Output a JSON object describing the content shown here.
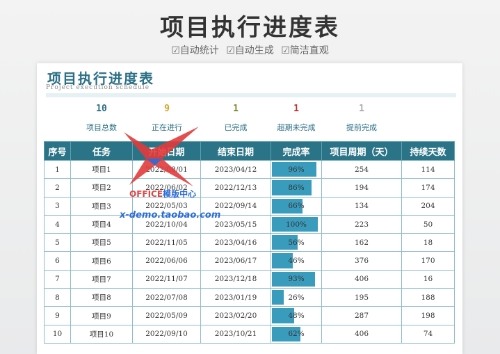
{
  "banner": {
    "title": "项目执行进度表",
    "tags": [
      "☑自动统计",
      "☑自动生成",
      "☑简洁直观"
    ]
  },
  "sheet": {
    "title": "项目执行进度表",
    "subtitle": "Project execution schedule"
  },
  "stats": [
    {
      "value": "10",
      "label": "项目总数",
      "color": "#2b6f86"
    },
    {
      "value": "9",
      "label": "正在进行",
      "color": "#d8a21a"
    },
    {
      "value": "1",
      "label": "已完成",
      "color": "#7a8a2a"
    },
    {
      "value": "1",
      "label": "超期未完成",
      "color": "#c03030"
    },
    {
      "value": "1",
      "label": "提前完成",
      "color": "#aaaaaa"
    }
  ],
  "table": {
    "headers": [
      "序号",
      "任务",
      "开始日期",
      "结束日期",
      "完成率",
      "项目周期（天）",
      "持续天数"
    ],
    "rows": [
      {
        "no": "1",
        "task": "项目1",
        "start": "2022/08/01",
        "end": "2023/04/12",
        "rate": "96%",
        "rate_value": 0.96,
        "cycle": "254",
        "days": "114"
      },
      {
        "no": "2",
        "task": "项目2",
        "start": "2022/06/02",
        "end": "2022/12/13",
        "rate": "86%",
        "rate_value": 0.86,
        "cycle": "194",
        "days": "174"
      },
      {
        "no": "3",
        "task": "项目3",
        "start": "2022/05/03",
        "end": "2022/09/14",
        "rate": "66%",
        "rate_value": 0.66,
        "cycle": "134",
        "days": "204"
      },
      {
        "no": "4",
        "task": "项目4",
        "start": "2022/10/04",
        "end": "2023/05/15",
        "rate": "100%",
        "rate_value": 1.0,
        "cycle": "223",
        "days": "50"
      },
      {
        "no": "5",
        "task": "项目5",
        "start": "2022/11/05",
        "end": "2023/04/16",
        "rate": "56%",
        "rate_value": 0.56,
        "cycle": "162",
        "days": "18"
      },
      {
        "no": "6",
        "task": "项目6",
        "start": "2022/06/06",
        "end": "2023/06/17",
        "rate": "46%",
        "rate_value": 0.46,
        "cycle": "376",
        "days": "170"
      },
      {
        "no": "7",
        "task": "项目7",
        "start": "2022/11/07",
        "end": "2023/12/18",
        "rate": "93%",
        "rate_value": 0.93,
        "cycle": "406",
        "days": "16"
      },
      {
        "no": "8",
        "task": "项目8",
        "start": "2022/07/08",
        "end": "2023/01/19",
        "rate": "26%",
        "rate_value": 0.26,
        "cycle": "195",
        "days": "188"
      },
      {
        "no": "9",
        "task": "项目9",
        "start": "2022/05/09",
        "end": "2023/02/20",
        "rate": "48%",
        "rate_value": 0.48,
        "cycle": "287",
        "days": "198"
      },
      {
        "no": "10",
        "task": "项目10",
        "start": "2022/09/10",
        "end": "2023/10/21",
        "rate": "62%",
        "rate_value": 0.62,
        "cycle": "406",
        "days": "74"
      }
    ]
  },
  "watermark": {
    "brand": "OFFICE",
    "brand_suffix": "模版中心",
    "url": "x-demo.taobao.com"
  },
  "colors": {
    "accent": "#2b7487",
    "bar": "#3a9cbd"
  }
}
